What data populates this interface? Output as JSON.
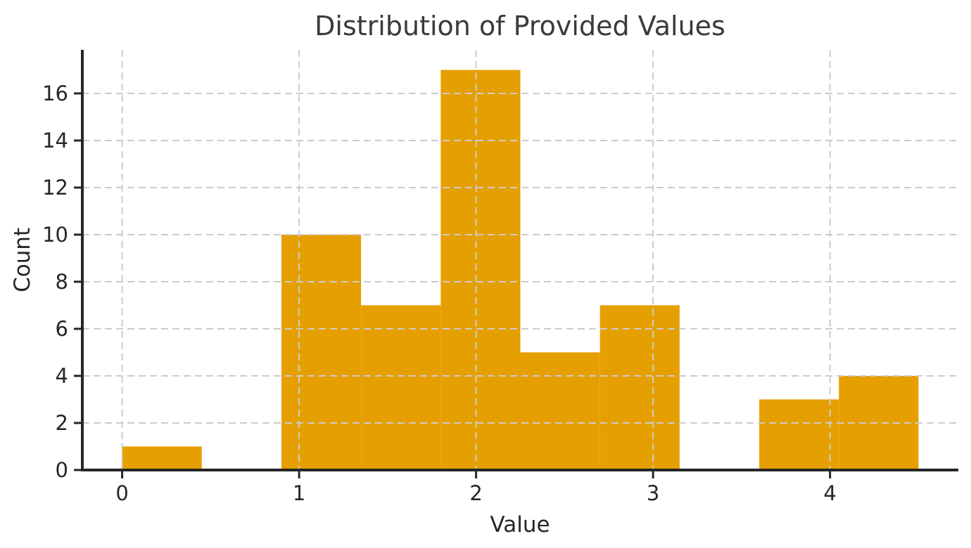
{
  "chart_data": {
    "type": "histogram",
    "title": "Distribution of Provided Values",
    "xlabel": "Value",
    "ylabel": "Count",
    "bin_edges": [
      0,
      0.45,
      0.9,
      1.35,
      1.8,
      2.25,
      2.7,
      3.15,
      3.6,
      4.05,
      4.5
    ],
    "counts": [
      1,
      0,
      10,
      7,
      17,
      5,
      7,
      0,
      3,
      4
    ],
    "xticks": [
      0,
      1,
      2,
      3,
      4
    ],
    "yticks": [
      0,
      2,
      4,
      6,
      8,
      10,
      12,
      14,
      16
    ],
    "xlim": [
      -0.225,
      4.725
    ],
    "ylim": [
      0,
      17.85
    ],
    "grid": true,
    "grid_style": "dashed",
    "legend": "none",
    "colors": {
      "bar": "#E69F00",
      "grid": "#cccccc",
      "axis": "#262626",
      "tick_label": "#262626",
      "title": "#3a3a3a",
      "background": "#ffffff"
    }
  }
}
